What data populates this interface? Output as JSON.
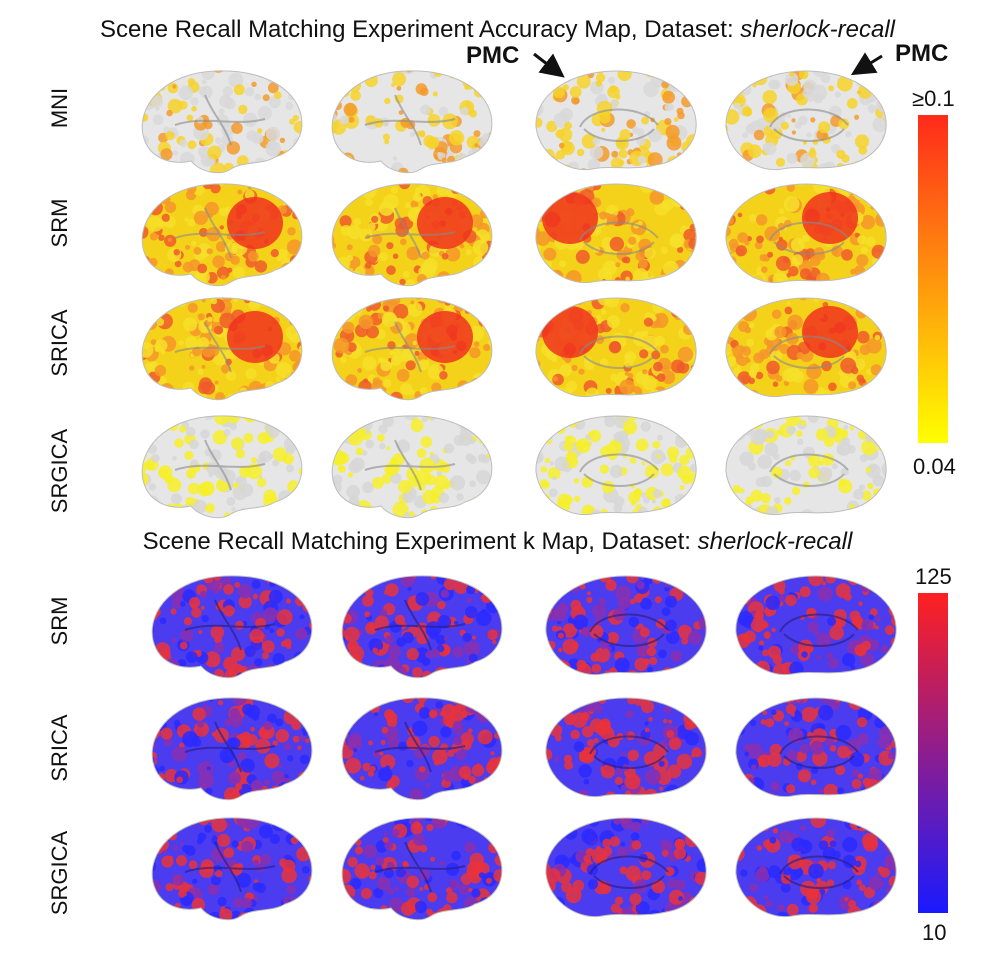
{
  "panels": [
    {
      "title_prefix": "Scene Recall Matching Experiment Accuracy Map, Dataset: ",
      "dataset": "sherlock-recall",
      "rows": [
        "MNI",
        "SRM",
        "SRICA",
        "SRGICA"
      ],
      "colorbar": {
        "max_label": "≥0.1",
        "min_label": "0.04",
        "colors": [
          "#ffff00",
          "#ff2a1a"
        ]
      },
      "annotation": "PMC"
    },
    {
      "title_prefix": "Scene Recall Matching Experiment k Map, Dataset: ",
      "dataset": "sherlock-recall",
      "rows": [
        "SRM",
        "SRICA",
        "SRGICA"
      ],
      "colorbar": {
        "max_label": "125",
        "min_label": "10",
        "colors": [
          "#1a1aff",
          "#ff2020"
        ]
      }
    }
  ]
}
